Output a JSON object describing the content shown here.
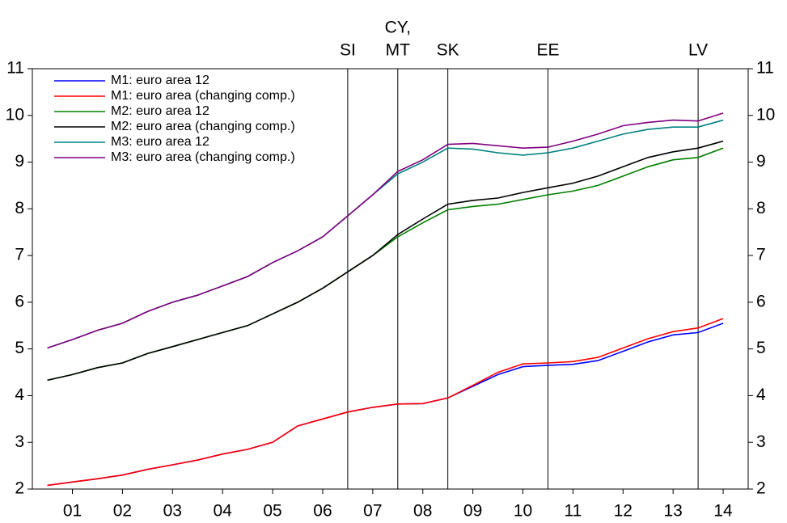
{
  "chart_data": {
    "type": "line",
    "x": [
      1.0,
      1.5,
      2.0,
      2.5,
      3.0,
      3.5,
      4.0,
      4.5,
      5.0,
      5.5,
      6.0,
      6.5,
      7.0,
      7.5,
      8.0,
      8.5,
      9.0,
      9.5,
      10.0,
      10.5,
      11.0,
      11.5,
      12.0,
      12.5,
      13.0,
      13.5,
      14.0,
      14.5
    ],
    "series": [
      {
        "name": "M1: euro area 12",
        "color": "#0000ff",
        "values": [
          2.08,
          2.15,
          2.22,
          2.3,
          2.42,
          2.52,
          2.62,
          2.75,
          2.85,
          3.0,
          3.35,
          3.5,
          3.65,
          3.75,
          3.82,
          3.83,
          3.95,
          4.2,
          4.45,
          4.62,
          4.65,
          4.67,
          4.75,
          4.95,
          5.15,
          5.3,
          5.35,
          5.55
        ]
      },
      {
        "name": "M1: euro area (changing comp.)",
        "color": "#ff0000",
        "values": [
          2.08,
          2.15,
          2.22,
          2.3,
          2.42,
          2.52,
          2.62,
          2.75,
          2.85,
          3.0,
          3.35,
          3.5,
          3.65,
          3.75,
          3.82,
          3.83,
          3.95,
          4.22,
          4.5,
          4.68,
          4.7,
          4.73,
          4.82,
          5.02,
          5.22,
          5.37,
          5.45,
          5.65
        ]
      },
      {
        "name": "M2: euro area 12",
        "color": "#008000",
        "values": [
          4.33,
          4.45,
          4.6,
          4.7,
          4.9,
          5.05,
          5.2,
          5.35,
          5.5,
          5.75,
          6.0,
          6.3,
          6.65,
          7.0,
          7.4,
          7.7,
          7.98,
          8.05,
          8.1,
          8.2,
          8.3,
          8.38,
          8.5,
          8.7,
          8.9,
          9.05,
          9.1,
          9.3
        ]
      },
      {
        "name": "M2: euro area (changing comp.)",
        "color": "#000000",
        "values": [
          4.33,
          4.45,
          4.6,
          4.7,
          4.9,
          5.05,
          5.2,
          5.35,
          5.5,
          5.75,
          6.0,
          6.3,
          6.65,
          7.0,
          7.45,
          7.78,
          8.1,
          8.18,
          8.23,
          8.35,
          8.45,
          8.55,
          8.7,
          8.9,
          9.1,
          9.22,
          9.3,
          9.45
        ]
      },
      {
        "name": "M3: euro area 12",
        "color": "#008080",
        "values": [
          5.02,
          5.2,
          5.4,
          5.55,
          5.8,
          6.0,
          6.15,
          6.35,
          6.55,
          6.85,
          7.1,
          7.4,
          7.85,
          8.3,
          8.75,
          9.0,
          9.3,
          9.28,
          9.2,
          9.15,
          9.2,
          9.3,
          9.45,
          9.6,
          9.7,
          9.75,
          9.75,
          9.9
        ]
      },
      {
        "name": "M3: euro area (changing comp.)",
        "color": "#800080",
        "values": [
          5.02,
          5.2,
          5.4,
          5.55,
          5.8,
          6.0,
          6.15,
          6.35,
          6.55,
          6.85,
          7.1,
          7.4,
          7.85,
          8.3,
          8.8,
          9.05,
          9.38,
          9.4,
          9.35,
          9.3,
          9.32,
          9.45,
          9.6,
          9.78,
          9.85,
          9.9,
          9.88,
          10.05
        ]
      }
    ],
    "xlim": [
      0.7,
      15.0
    ],
    "xticks": [
      {
        "value": 1.5,
        "label": "01"
      },
      {
        "value": 2.5,
        "label": "02"
      },
      {
        "value": 3.5,
        "label": "03"
      },
      {
        "value": 4.5,
        "label": "04"
      },
      {
        "value": 5.5,
        "label": "05"
      },
      {
        "value": 6.5,
        "label": "06"
      },
      {
        "value": 7.5,
        "label": "07"
      },
      {
        "value": 8.5,
        "label": "08"
      },
      {
        "value": 9.5,
        "label": "09"
      },
      {
        "value": 10.5,
        "label": "10"
      },
      {
        "value": 11.5,
        "label": "11"
      },
      {
        "value": 12.5,
        "label": "12"
      },
      {
        "value": 13.5,
        "label": "13"
      },
      {
        "value": 14.5,
        "label": "14"
      }
    ],
    "ylim": [
      2,
      11
    ],
    "yticks": [
      2,
      3,
      4,
      5,
      6,
      7,
      8,
      9,
      10,
      11
    ],
    "legend": "upper left",
    "annotations": [
      {
        "x": 7,
        "text": [
          "SI"
        ]
      },
      {
        "x": 8,
        "text": [
          "CY,",
          "MT"
        ]
      },
      {
        "x": 9,
        "text": [
          "SK"
        ]
      },
      {
        "x": 11,
        "text": [
          "EE"
        ]
      },
      {
        "x": 14,
        "text": [
          "LV"
        ]
      }
    ]
  }
}
